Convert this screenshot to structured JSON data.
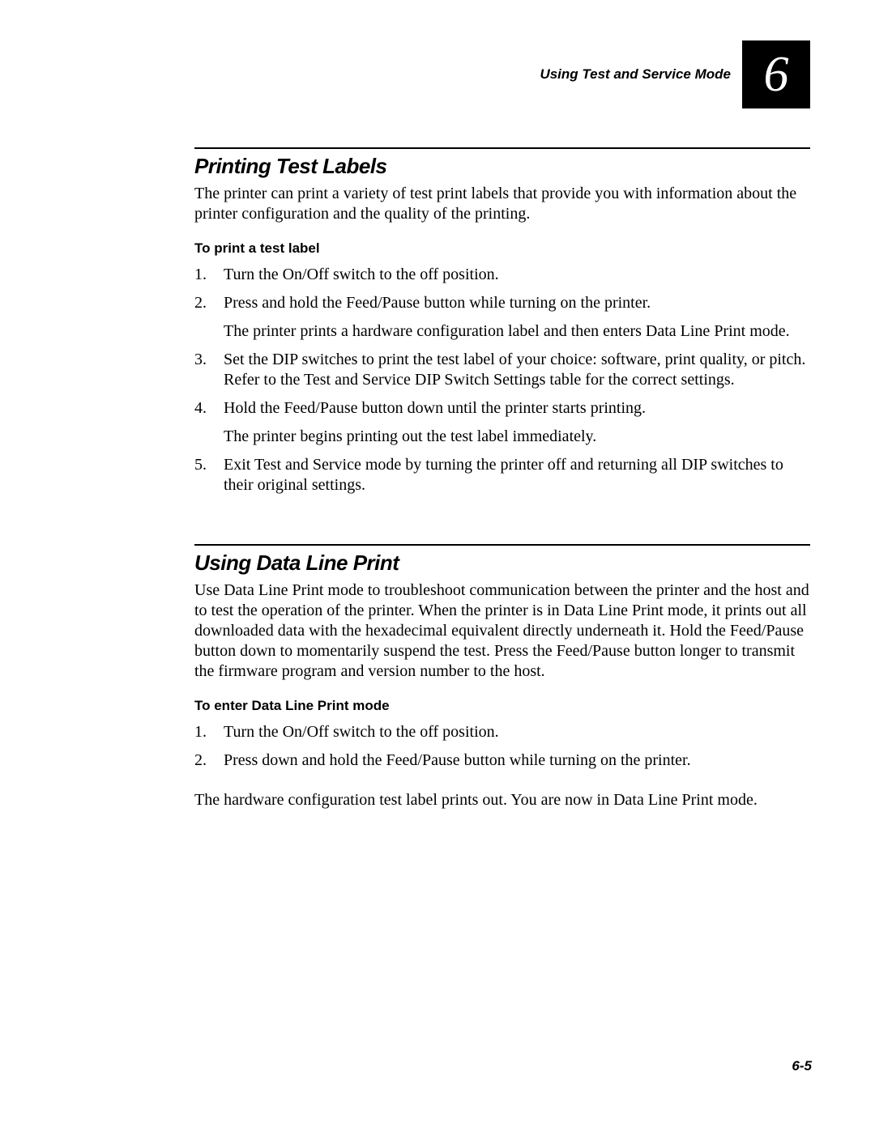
{
  "header": {
    "running_title": "Using Test and Service Mode",
    "chapter_number": "6"
  },
  "sections": [
    {
      "title": "Printing Test Labels",
      "intro": "The printer can print a variety of test print labels that provide you with information about the printer configuration and the quality of the printing.",
      "sub_heading": "To print a test label",
      "steps": [
        {
          "text": "Turn the On/Off switch to the off position."
        },
        {
          "text": "Press and hold the Feed/Pause button while turning on the printer.",
          "note": "The printer prints a hardware configuration label and then enters Data Line Print mode."
        },
        {
          "text": "Set the DIP switches to print the test label of your choice: software, print quality, or pitch. Refer to the Test and Service DIP Switch Settings table for the correct settings."
        },
        {
          "text": "Hold the Feed/Pause button down until the printer starts printing.",
          "note": "The printer begins printing out the test label immediately."
        },
        {
          "text": "Exit Test and Service mode by turning the printer off and returning all DIP switches to their original settings."
        }
      ]
    },
    {
      "title": "Using Data Line Print",
      "intro": "Use Data Line Print mode to troubleshoot communication between the printer and the host and to test the operation of the printer. When the printer is in Data Line Print mode, it prints out all downloaded data with the hexadecimal equivalent directly underneath it. Hold the Feed/Pause button down to momentarily suspend the test. Press the Feed/Pause button longer to transmit the firmware program and version number to the host.",
      "sub_heading": "To enter Data Line Print mode",
      "steps": [
        {
          "text": "Turn the On/Off switch to the off position."
        },
        {
          "text": "Press down and hold the Feed/Pause button while turning on the printer."
        }
      ],
      "result": "The hardware configuration test label prints out. You are now in Data Line Print mode."
    }
  ],
  "footer": {
    "page_number": "6-5"
  }
}
